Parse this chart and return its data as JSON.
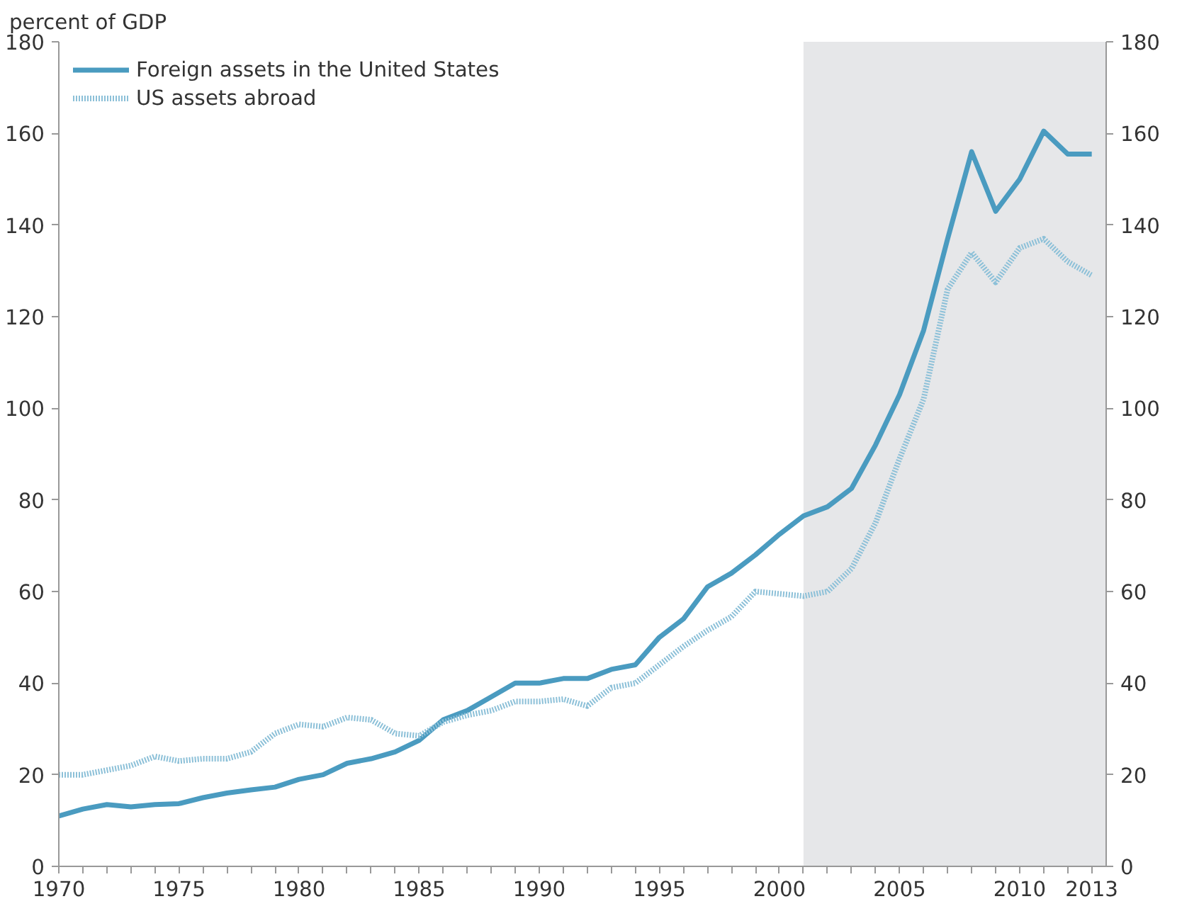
{
  "chart_data": {
    "type": "line",
    "ylabel": "percent of GDP",
    "x": [
      1970,
      1971,
      1972,
      1973,
      1974,
      1975,
      1976,
      1977,
      1978,
      1979,
      1980,
      1981,
      1982,
      1983,
      1984,
      1985,
      1986,
      1987,
      1988,
      1989,
      1990,
      1991,
      1992,
      1993,
      1994,
      1995,
      1996,
      1997,
      1998,
      1999,
      2000,
      2001,
      2002,
      2003,
      2004,
      2005,
      2006,
      2007,
      2008,
      2009,
      2010,
      2011,
      2012,
      2013
    ],
    "series": [
      {
        "name": "Foreign assets in the United States",
        "color": "#4a9bc0",
        "line_style": "solid",
        "values": [
          11,
          12.5,
          13.5,
          13,
          13.5,
          13.7,
          15,
          16,
          16.7,
          17.3,
          19,
          20,
          22.5,
          23.5,
          25,
          27.5,
          32,
          34,
          37,
          40,
          40,
          41,
          41,
          43,
          44,
          50,
          54,
          61,
          64,
          68,
          72.5,
          76.5,
          78.5,
          82.5,
          92,
          103,
          117,
          137,
          156,
          143,
          150,
          160.5,
          155.5,
          155.5
        ]
      },
      {
        "name": "US assets abroad",
        "color": "#8cc0d8",
        "line_style": "dotted",
        "values": [
          20,
          20,
          21,
          22,
          24,
          23,
          23.5,
          23.5,
          25,
          29,
          31,
          30.5,
          32.5,
          32,
          29,
          28.5,
          31.5,
          33,
          34,
          36,
          36,
          36.5,
          35,
          39,
          40,
          44,
          48,
          51.5,
          54.5,
          60,
          59.5,
          59,
          60,
          65,
          75,
          89,
          102,
          126,
          134,
          127.5,
          135,
          137,
          132,
          129
        ]
      }
    ],
    "xlim": [
      1970,
      2013.6
    ],
    "xticks": [
      1970,
      {
        "value": 1971,
        "label": null
      },
      {
        "value": 1972,
        "label": null
      },
      {
        "value": 1973,
        "label": null
      },
      {
        "value": 1974,
        "label": null
      },
      1975,
      {
        "value": 1976,
        "label": null
      },
      {
        "value": 1977,
        "label": null
      },
      {
        "value": 1978,
        "label": null
      },
      {
        "value": 1979,
        "label": null
      },
      1980,
      {
        "value": 1981,
        "label": null
      },
      {
        "value": 1982,
        "label": null
      },
      {
        "value": 1983,
        "label": null
      },
      {
        "value": 1984,
        "label": null
      },
      1985,
      {
        "value": 1986,
        "label": null
      },
      {
        "value": 1987,
        "label": null
      },
      {
        "value": 1988,
        "label": null
      },
      {
        "value": 1989,
        "label": null
      },
      1990,
      {
        "value": 1991,
        "label": null
      },
      {
        "value": 1992,
        "label": null
      },
      {
        "value": 1993,
        "label": null
      },
      {
        "value": 1994,
        "label": null
      },
      1995,
      {
        "value": 1996,
        "label": null
      },
      {
        "value": 1997,
        "label": null
      },
      {
        "value": 1998,
        "label": null
      },
      {
        "value": 1999,
        "label": null
      },
      2000,
      {
        "value": 2001,
        "label": null
      },
      {
        "value": 2002,
        "label": null
      },
      {
        "value": 2003,
        "label": null
      },
      {
        "value": 2004,
        "label": null
      },
      2005,
      {
        "value": 2006,
        "label": null
      },
      {
        "value": 2007,
        "label": null
      },
      {
        "value": 2008,
        "label": null
      },
      {
        "value": 2009,
        "label": null
      },
      2010,
      {
        "value": 2011,
        "label": null
      },
      {
        "value": 2012,
        "label": null
      },
      2013
    ],
    "ylim": [
      0,
      180
    ],
    "yticks": [
      0,
      20,
      40,
      60,
      80,
      100,
      120,
      140,
      160,
      180
    ],
    "y2lim": [
      0,
      180
    ],
    "y2ticks": [
      0,
      20,
      40,
      60,
      80,
      100,
      120,
      140,
      160,
      180
    ],
    "bands": [
      {
        "axis": "x",
        "from": 2001,
        "to": 2013.6,
        "color": "#e6e7e9"
      }
    ],
    "grid": false,
    "legend": "top left"
  }
}
